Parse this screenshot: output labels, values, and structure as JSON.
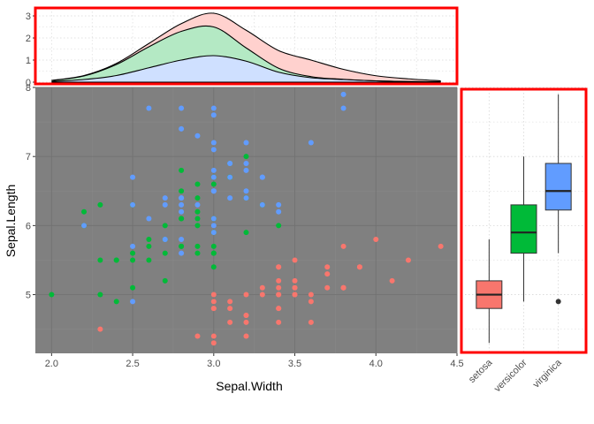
{
  "chart_data": [
    {
      "type": "area",
      "kind": "stacked-density",
      "x_range": [
        1.9,
        4.5
      ],
      "ylim": [
        0,
        3.2
      ],
      "y_ticks": [
        "0",
        "1",
        "2",
        "3"
      ],
      "grid": true,
      "border_color": "#ff0000",
      "x": [
        2.0,
        2.2,
        2.4,
        2.6,
        2.8,
        3.0,
        3.2,
        3.4,
        3.6,
        3.8,
        4.0,
        4.2,
        4.4
      ],
      "layers": [
        {
          "species": "virginica",
          "color": "#cfe0ff",
          "values": [
            0.03,
            0.12,
            0.3,
            0.65,
            1.0,
            1.2,
            0.95,
            0.45,
            0.2,
            0.12,
            0.06,
            0.03,
            0.02
          ]
        },
        {
          "species": "versicolor",
          "color": "#b4e9c4",
          "values": [
            0.04,
            0.16,
            0.5,
            0.95,
            1.3,
            1.3,
            0.6,
            0.18,
            0.05,
            0.01,
            0.0,
            0.0,
            0.0
          ]
        },
        {
          "species": "setosa",
          "color": "#ffd1ce",
          "values": [
            0.01,
            0.02,
            0.05,
            0.15,
            0.35,
            0.62,
            0.8,
            0.8,
            0.75,
            0.45,
            0.23,
            0.12,
            0.04
          ]
        }
      ]
    },
    {
      "type": "scatter",
      "xlabel": "Sepal.Width",
      "ylabel": "Sepal.Length",
      "xlim": [
        1.9,
        4.5
      ],
      "ylim": [
        4.15,
        8.0
      ],
      "x_ticks": [
        "2.0",
        "2.5",
        "3.0",
        "3.5",
        "4.0",
        "4.5"
      ],
      "y_ticks": [
        "5",
        "6",
        "7",
        "8"
      ],
      "background": "#808080",
      "grid": true,
      "series": [
        {
          "species": "setosa",
          "color": "#f8766d",
          "points": [
            [
              3.5,
              5.1
            ],
            [
              3.0,
              4.9
            ],
            [
              3.2,
              4.7
            ],
            [
              3.1,
              4.6
            ],
            [
              3.6,
              5.0
            ],
            [
              3.9,
              5.4
            ],
            [
              3.4,
              4.6
            ],
            [
              3.4,
              5.0
            ],
            [
              2.9,
              4.4
            ],
            [
              3.1,
              4.9
            ],
            [
              3.7,
              5.4
            ],
            [
              3.4,
              4.8
            ],
            [
              3.0,
              4.8
            ],
            [
              3.0,
              4.3
            ],
            [
              4.0,
              5.8
            ],
            [
              4.4,
              5.7
            ],
            [
              3.9,
              5.4
            ],
            [
              3.5,
              5.1
            ],
            [
              3.8,
              5.7
            ],
            [
              3.8,
              5.1
            ],
            [
              3.4,
              5.4
            ],
            [
              3.7,
              5.1
            ],
            [
              3.6,
              4.6
            ],
            [
              3.3,
              5.1
            ],
            [
              3.4,
              4.8
            ],
            [
              3.0,
              5.0
            ],
            [
              3.4,
              5.0
            ],
            [
              3.5,
              5.2
            ],
            [
              3.4,
              5.2
            ],
            [
              3.2,
              4.7
            ],
            [
              3.1,
              4.8
            ],
            [
              3.4,
              5.4
            ],
            [
              4.1,
              5.2
            ],
            [
              4.2,
              5.5
            ],
            [
              3.2,
              5.0
            ],
            [
              3.5,
              5.5
            ],
            [
              3.6,
              4.9
            ],
            [
              3.0,
              4.4
            ],
            [
              3.4,
              5.1
            ],
            [
              3.5,
              5.0
            ],
            [
              2.3,
              4.5
            ],
            [
              3.2,
              4.4
            ],
            [
              3.5,
              5.0
            ],
            [
              3.8,
              5.1
            ],
            [
              3.0,
              4.8
            ],
            [
              3.8,
              5.1
            ],
            [
              3.2,
              4.6
            ],
            [
              3.7,
              5.3
            ],
            [
              3.3,
              5.0
            ]
          ]
        },
        {
          "species": "versicolor",
          "color": "#00ba38",
          "points": [
            [
              3.2,
              7.0
            ],
            [
              3.2,
              6.4
            ],
            [
              3.1,
              6.9
            ],
            [
              2.3,
              5.5
            ],
            [
              2.8,
              6.5
            ],
            [
              2.8,
              5.7
            ],
            [
              3.3,
              6.3
            ],
            [
              2.4,
              4.9
            ],
            [
              2.9,
              6.6
            ],
            [
              2.7,
              5.2
            ],
            [
              2.0,
              5.0
            ],
            [
              3.0,
              5.9
            ],
            [
              2.2,
              6.0
            ],
            [
              2.9,
              6.1
            ],
            [
              2.9,
              5.6
            ],
            [
              3.1,
              6.7
            ],
            [
              3.0,
              5.6
            ],
            [
              2.7,
              5.8
            ],
            [
              2.2,
              6.2
            ],
            [
              2.5,
              5.6
            ],
            [
              3.2,
              5.9
            ],
            [
              2.8,
              6.1
            ],
            [
              2.5,
              6.3
            ],
            [
              2.8,
              6.1
            ],
            [
              2.9,
              6.4
            ],
            [
              3.0,
              6.6
            ],
            [
              2.8,
              6.8
            ],
            [
              3.0,
              6.7
            ],
            [
              2.9,
              6.0
            ],
            [
              2.6,
              5.7
            ],
            [
              2.4,
              5.5
            ],
            [
              2.4,
              5.5
            ],
            [
              2.7,
              5.8
            ],
            [
              2.7,
              6.0
            ],
            [
              3.0,
              5.4
            ],
            [
              3.4,
              6.0
            ],
            [
              3.1,
              6.7
            ],
            [
              2.3,
              6.3
            ],
            [
              3.0,
              5.6
            ],
            [
              2.5,
              5.5
            ],
            [
              2.6,
              5.5
            ],
            [
              3.0,
              6.1
            ],
            [
              2.6,
              5.8
            ],
            [
              2.3,
              5.0
            ],
            [
              2.7,
              5.6
            ],
            [
              3.0,
              5.7
            ],
            [
              2.9,
              5.7
            ],
            [
              2.9,
              6.2
            ],
            [
              2.5,
              5.1
            ],
            [
              2.8,
              5.7
            ]
          ]
        },
        {
          "species": "virginica",
          "color": "#619cff",
          "points": [
            [
              3.3,
              6.3
            ],
            [
              2.7,
              5.8
            ],
            [
              3.0,
              7.1
            ],
            [
              2.9,
              6.3
            ],
            [
              3.0,
              6.5
            ],
            [
              3.0,
              7.6
            ],
            [
              2.5,
              4.9
            ],
            [
              2.9,
              7.3
            ],
            [
              2.5,
              6.7
            ],
            [
              3.6,
              7.2
            ],
            [
              3.2,
              6.5
            ],
            [
              2.7,
              6.4
            ],
            [
              3.0,
              6.8
            ],
            [
              2.5,
              5.7
            ],
            [
              2.8,
              5.8
            ],
            [
              3.2,
              6.4
            ],
            [
              3.0,
              6.5
            ],
            [
              3.8,
              7.7
            ],
            [
              2.6,
              7.7
            ],
            [
              2.2,
              6.0
            ],
            [
              3.2,
              6.9
            ],
            [
              2.8,
              5.6
            ],
            [
              2.8,
              7.7
            ],
            [
              2.7,
              6.3
            ],
            [
              3.3,
              6.7
            ],
            [
              3.2,
              7.2
            ],
            [
              2.8,
              6.2
            ],
            [
              3.0,
              6.1
            ],
            [
              2.8,
              6.4
            ],
            [
              3.0,
              7.2
            ],
            [
              2.8,
              7.4
            ],
            [
              3.8,
              7.9
            ],
            [
              2.8,
              6.4
            ],
            [
              2.8,
              6.3
            ],
            [
              2.6,
              6.1
            ],
            [
              3.0,
              7.7
            ],
            [
              3.4,
              6.3
            ],
            [
              3.1,
              6.4
            ],
            [
              3.0,
              6.0
            ],
            [
              3.1,
              6.9
            ],
            [
              3.1,
              6.7
            ],
            [
              3.1,
              6.9
            ],
            [
              2.7,
              5.8
            ],
            [
              3.2,
              6.8
            ],
            [
              3.3,
              6.7
            ],
            [
              3.0,
              6.7
            ],
            [
              2.5,
              6.3
            ],
            [
              3.0,
              6.5
            ],
            [
              3.4,
              6.2
            ],
            [
              3.0,
              5.9
            ]
          ]
        }
      ]
    },
    {
      "type": "box",
      "ylim": [
        4.15,
        8.0
      ],
      "categories": [
        "setosa",
        "versicolor",
        "virginica"
      ],
      "border_color": "#ff0000",
      "grid": true,
      "boxes": [
        {
          "category": "setosa",
          "color": "#f8766d",
          "min": 4.3,
          "q1": 4.8,
          "median": 5.0,
          "q3": 5.2,
          "max": 5.8,
          "outliers": []
        },
        {
          "category": "versicolor",
          "color": "#00ba38",
          "min": 4.9,
          "q1": 5.6,
          "median": 5.9,
          "q3": 6.3,
          "max": 7.0,
          "outliers": []
        },
        {
          "category": "virginica",
          "color": "#619cff",
          "min": 5.6,
          "q1": 6.225,
          "median": 6.5,
          "q3": 6.9,
          "max": 7.9,
          "outliers": [
            4.9
          ]
        }
      ]
    }
  ]
}
